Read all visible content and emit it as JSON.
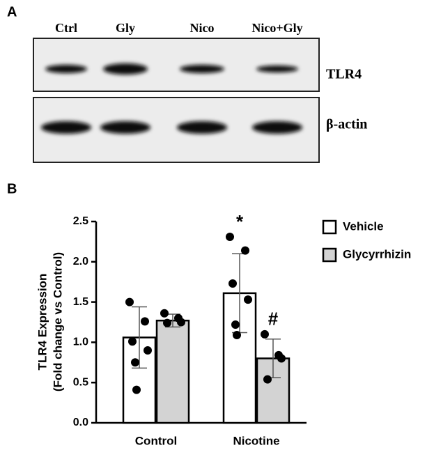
{
  "blot": {
    "panel_label": "A",
    "lanes": [
      "Ctrl",
      "Gly",
      "Nico",
      "Nico+Gly"
    ],
    "bands": [
      "TLR4",
      "β-actin"
    ]
  },
  "chart_data": {
    "type": "bar",
    "panel_label": "B",
    "y_label": [
      "TLR4 Expression",
      "(Fold change vs Control)"
    ],
    "categories": [
      "Control",
      "Nicotine"
    ],
    "series": [
      {
        "name": "Vehicle",
        "color": "#ffffff",
        "values": [
          1.06,
          1.61
        ],
        "errors": [
          0.38,
          0.49
        ],
        "points": [
          [
            1.5,
            1.26,
            1.01,
            0.9,
            0.75,
            0.41
          ],
          [
            2.31,
            2.14,
            1.73,
            1.53,
            1.22,
            1.09
          ]
        ],
        "annotations": [
          null,
          "*"
        ]
      },
      {
        "name": "Glycyrrhizin",
        "color": "#d3d3d3",
        "values": [
          1.27,
          0.8
        ],
        "errors": [
          0.08,
          0.24
        ],
        "points": [
          [
            1.36,
            1.3,
            1.25,
            1.24
          ],
          [
            1.1,
            0.84,
            0.8,
            0.54
          ]
        ],
        "annotations": [
          null,
          "#"
        ]
      }
    ],
    "ylim": [
      0,
      2.5
    ],
    "yticks": [
      {
        "value": 0,
        "label": "0.0"
      },
      0.5,
      {
        "value": 1,
        "label": "1.0"
      },
      1.5,
      {
        "value": 2,
        "label": "2.0"
      },
      2.5
    ],
    "legend": "right"
  }
}
